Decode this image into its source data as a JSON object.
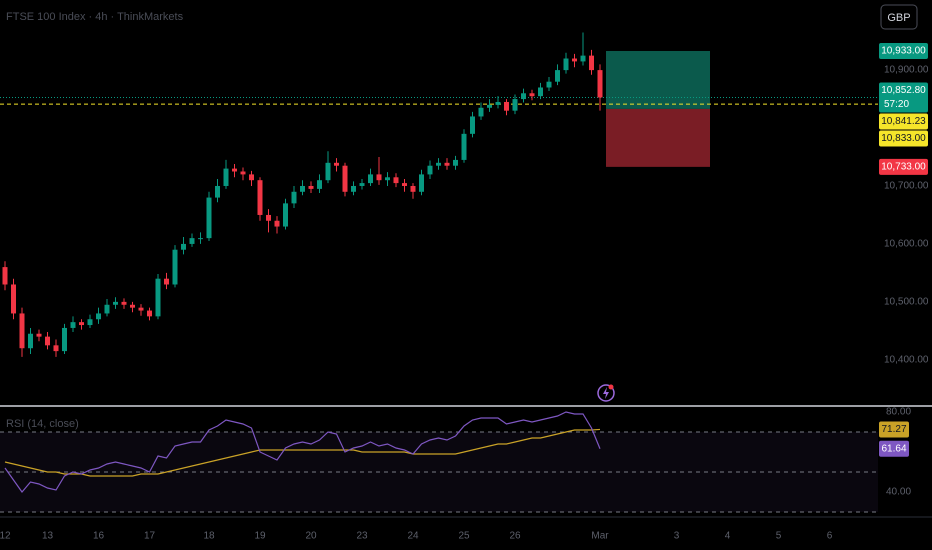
{
  "chart_data": {
    "type": "candlestick",
    "title": "FTSE 100 Index · 4h · ThinkMarkets",
    "currency": "GBP",
    "up_color": "#089981",
    "down_color": "#f23645",
    "categories": [
      "12",
      null,
      null,
      null,
      null,
      "13",
      null,
      null,
      null,
      null,
      null,
      "16",
      null,
      null,
      null,
      null,
      null,
      "17",
      null,
      null,
      null,
      null,
      null,
      null,
      "18",
      null,
      null,
      null,
      null,
      null,
      "19",
      null,
      null,
      null,
      null,
      null,
      "20",
      null,
      null,
      null,
      null,
      null,
      "23",
      null,
      null,
      null,
      null,
      null,
      "24",
      null,
      null,
      null,
      null,
      null,
      "25",
      null,
      null,
      null,
      null,
      null,
      "26",
      null,
      null,
      null,
      null,
      null,
      null,
      null,
      null,
      null,
      "Mar",
      null,
      null,
      null,
      null,
      null,
      null,
      null,
      null,
      "3",
      null,
      null,
      null,
      null,
      null,
      "4",
      null,
      null,
      null,
      null,
      null,
      "5",
      null,
      null,
      null,
      null,
      null,
      "6"
    ],
    "open": [
      10560,
      10530,
      10480,
      10420,
      10445,
      10440,
      10425,
      10415,
      10455,
      10465,
      10460,
      10470,
      10480,
      10495,
      10500,
      10495,
      10490,
      10485,
      10475,
      10540,
      10530,
      10590,
      10600,
      10610,
      10610,
      10680,
      10700,
      10730,
      10725,
      10720,
      10710,
      10650,
      10640,
      10630,
      10670,
      10690,
      10700,
      10695,
      10710,
      10740,
      10735,
      10690,
      10700,
      10705,
      10720,
      10710,
      10715,
      10705,
      10700,
      10690,
      10720,
      10735,
      10740,
      10735,
      10745,
      10790,
      10820,
      10835,
      10840,
      10845,
      10830,
      10850,
      10860,
      10855,
      10870,
      10880,
      10900,
      10920,
      10915,
      10925,
      10900,
      null,
      null,
      null,
      null,
      null,
      null,
      null,
      null,
      null,
      null,
      null,
      null,
      null,
      null,
      null,
      null,
      null,
      null,
      null,
      null,
      null,
      null,
      null,
      null,
      null,
      null,
      null
    ],
    "high": [
      10570,
      10540,
      10490,
      10455,
      10452,
      10448,
      10435,
      10462,
      10475,
      10470,
      10478,
      10490,
      10505,
      10508,
      10506,
      10500,
      10496,
      10490,
      10548,
      10550,
      10598,
      10612,
      10618,
      10620,
      10690,
      10712,
      10745,
      10738,
      10732,
      10726,
      10715,
      10660,
      10648,
      10678,
      10700,
      10710,
      10708,
      10720,
      10760,
      10748,
      10740,
      10708,
      10712,
      10730,
      10750,
      10724,
      10722,
      10712,
      10705,
      10728,
      10744,
      10748,
      10748,
      10752,
      10798,
      10828,
      10844,
      10850,
      10855,
      10850,
      10858,
      10868,
      10866,
      10878,
      10888,
      10910,
      10930,
      10928,
      10965,
      10935,
      10910,
      null,
      null,
      null,
      null,
      null,
      null,
      null,
      null,
      null,
      null,
      null,
      null,
      null,
      null,
      null,
      null,
      null,
      null,
      null,
      null,
      null,
      null,
      null,
      null,
      null,
      null,
      null
    ],
    "low": [
      10520,
      10470,
      10405,
      10410,
      10432,
      10418,
      10405,
      10410,
      10448,
      10452,
      10455,
      10462,
      10475,
      10488,
      10488,
      10482,
      10476,
      10468,
      10470,
      10522,
      10525,
      10582,
      10595,
      10600,
      10605,
      10672,
      10695,
      10715,
      10710,
      10700,
      10640,
      10620,
      10618,
      10625,
      10662,
      10684,
      10688,
      10688,
      10705,
      10725,
      10682,
      10684,
      10694,
      10700,
      10702,
      10700,
      10698,
      10690,
      10678,
      10684,
      10712,
      10728,
      10728,
      10728,
      10740,
      10784,
      10814,
      10828,
      10834,
      10822,
      10824,
      10844,
      10848,
      10850,
      10864,
      10874,
      10894,
      10905,
      10908,
      10892,
      10830,
      null,
      null,
      null,
      null,
      null,
      null,
      null,
      null,
      null,
      null,
      null,
      null,
      null,
      null,
      null,
      null,
      null,
      null,
      null,
      null,
      null,
      null,
      null,
      null,
      null,
      null,
      null
    ],
    "close": [
      10530,
      10480,
      10420,
      10445,
      10440,
      10425,
      10415,
      10455,
      10465,
      10460,
      10470,
      10480,
      10495,
      10500,
      10495,
      10490,
      10485,
      10475,
      10540,
      10530,
      10590,
      10600,
      10610,
      10610,
      10680,
      10700,
      10730,
      10725,
      10720,
      10710,
      10650,
      10640,
      10630,
      10670,
      10690,
      10700,
      10695,
      10710,
      10740,
      10735,
      10690,
      10700,
      10705,
      10720,
      10710,
      10715,
      10705,
      10700,
      10690,
      10720,
      10735,
      10740,
      10735,
      10745,
      10790,
      10820,
      10835,
      10840,
      10845,
      10830,
      10850,
      10860,
      10855,
      10870,
      10880,
      10900,
      10920,
      10915,
      10925,
      10900,
      10852.8,
      null,
      null,
      null,
      null,
      null,
      null,
      null,
      null,
      null,
      null,
      null,
      null,
      null,
      null,
      null,
      null,
      null,
      null,
      null,
      null,
      null,
      null,
      null,
      null,
      null,
      null,
      null
    ],
    "ylim": [
      10322,
      11021
    ],
    "yticks": [
      {
        "value": 10900,
        "label": "10,900.00"
      },
      {
        "value": 10700,
        "label": "10,700.00"
      },
      {
        "value": 10600,
        "label": "10,600.00"
      },
      {
        "value": 10500,
        "label": "10,500.00"
      },
      {
        "value": 10400,
        "label": "10,400.00"
      }
    ],
    "last_price": {
      "value": 10852.8,
      "label": "10,852.80",
      "countdown": "57:20",
      "color": "#089981"
    },
    "bid_line": {
      "value": 10841.23,
      "label": "10,841.23",
      "color": "#f5e52a"
    },
    "position": {
      "target": {
        "value": 10933,
        "label": "10,933.00",
        "color": "#089981"
      },
      "entry": {
        "value": 10833,
        "label": "10,833.00",
        "color": "#f5e52a"
      },
      "stop": {
        "value": 10733,
        "label": "10,733.00",
        "color": "#f23645"
      },
      "profit_color": "#0b5a4c",
      "loss_color": "#7a1d25"
    },
    "rsi": {
      "title": "RSI (14, close)",
      "color": "#7e57c2",
      "ma_color": "#c9a227",
      "ylim": [
        28.5,
        82.5
      ],
      "yticks": [
        {
          "value": 80,
          "label": "80.00"
        },
        {
          "value": 40,
          "label": "40.00"
        }
      ],
      "bands": [
        70,
        50,
        30
      ],
      "values": [
        52,
        46,
        40,
        45,
        44,
        42,
        41,
        48,
        50,
        49,
        51,
        52,
        54,
        55,
        54,
        53,
        52,
        50,
        58,
        57,
        63,
        64,
        65,
        65,
        71,
        73,
        76,
        75,
        74,
        72,
        60,
        58,
        56,
        62,
        64,
        65,
        64,
        66,
        70,
        69,
        60,
        62,
        63,
        65,
        63,
        64,
        62,
        61,
        59,
        64,
        66,
        67,
        66,
        68,
        73,
        76,
        77,
        77,
        77,
        74,
        75,
        76,
        75,
        76,
        77,
        78,
        80,
        79,
        79,
        72,
        61.64,
        null,
        null,
        null,
        null,
        null,
        null,
        null,
        null,
        null,
        null,
        null,
        null,
        null,
        null,
        null,
        null,
        null,
        null,
        null,
        null,
        null,
        null,
        null,
        null,
        null,
        null,
        null
      ],
      "ma": [
        55,
        54,
        53,
        52,
        51,
        50,
        50,
        49,
        49,
        49,
        48,
        48,
        48,
        48,
        48,
        48,
        49,
        49,
        49,
        50,
        51,
        52,
        53,
        54,
        55,
        56,
        57,
        58,
        59,
        60,
        61,
        61,
        61,
        61,
        61,
        61,
        61,
        61,
        61,
        61,
        61,
        61,
        60,
        60,
        60,
        60,
        60,
        60,
        59,
        59,
        59,
        59,
        59,
        59,
        60,
        61,
        62,
        63,
        64,
        64,
        65,
        66,
        67,
        67,
        68,
        69,
        70,
        71,
        71,
        71,
        71.27,
        null,
        null,
        null,
        null,
        null,
        null,
        null,
        null,
        null,
        null,
        null,
        null,
        null,
        null,
        null,
        null,
        null,
        null,
        null,
        null,
        null,
        null,
        null,
        null,
        null,
        null,
        null
      ],
      "value_label": "61.64",
      "ma_label": "71.27"
    }
  }
}
